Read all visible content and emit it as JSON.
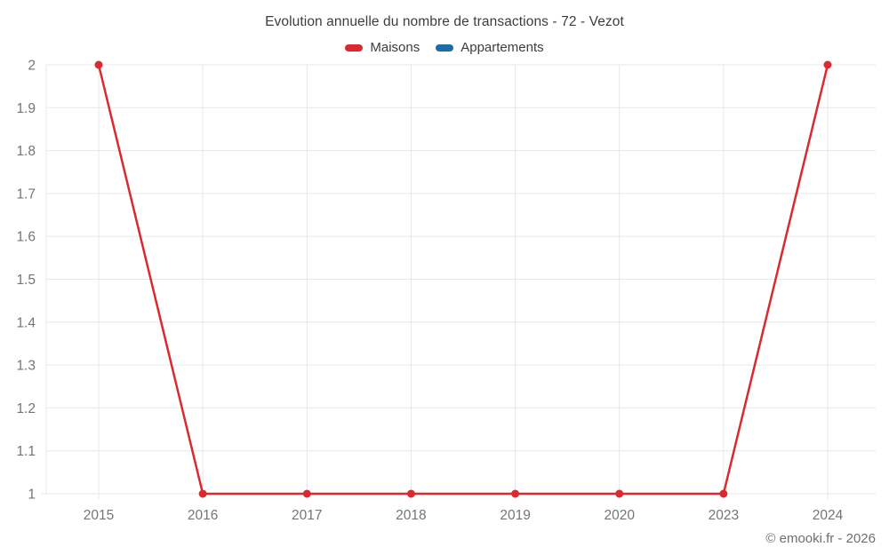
{
  "chart_data": {
    "type": "line",
    "title": "Evolution annuelle du nombre de transactions - 72 - Vezot",
    "categories": [
      "2015",
      "2016",
      "2017",
      "2018",
      "2019",
      "2020",
      "2023",
      "2024"
    ],
    "series": [
      {
        "name": "Maisons",
        "color": "#da2a30",
        "values": [
          2,
          1,
          1,
          1,
          1,
          1,
          1,
          2
        ]
      },
      {
        "name": "Appartements",
        "color": "#1c6ca6",
        "values": []
      }
    ],
    "xlabel": "",
    "ylabel": "",
    "ylim": [
      1,
      2
    ],
    "ytick_step": 0.1,
    "grid": true,
    "legend_position": "top",
    "colors": {
      "gridline": "#e7e7e7",
      "axis_label": "#757575",
      "marker_radius": 4.5,
      "line_width": 2.5
    }
  },
  "footer": {
    "copyright": "© emooki.fr - 2026"
  }
}
